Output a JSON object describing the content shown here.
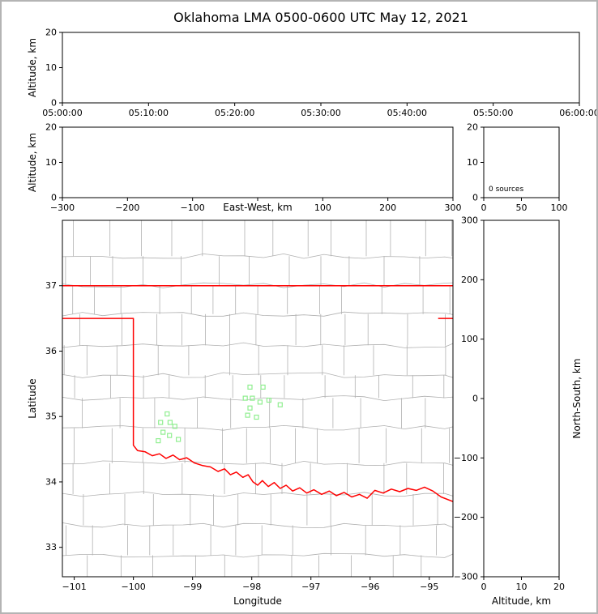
{
  "title": "Oklahoma LMA 0500-0600 UTC May 12, 2021",
  "colors": {
    "background": "#ffffff",
    "frame_border": "#b4b4b4",
    "axis": "#000000",
    "text": "#000000",
    "county_line": "#b0b0b0",
    "state_border": "#ff0000",
    "station_marker": "#90ee90"
  },
  "chart_data": [
    {
      "id": "time_height_panel",
      "type": "scatter",
      "xlabel": "",
      "ylabel": "Altitude, km",
      "ylim": [
        0,
        20
      ],
      "yticks": [
        0,
        10,
        20
      ],
      "xtick_labels": [
        "05:00:00",
        "05:10:00",
        "05:20:00",
        "05:30:00",
        "05:40:00",
        "05:50:00",
        "06:00:00"
      ],
      "points": []
    },
    {
      "id": "ew_height_panel",
      "type": "scatter",
      "xlabel": "East-West, km",
      "ylabel": "Altitude, km",
      "xlim": [
        -300,
        300
      ],
      "xticks": [
        -300,
        -200,
        -100,
        0,
        100,
        200,
        300
      ],
      "xtick_show_label": [
        true,
        true,
        true,
        false,
        true,
        true,
        true
      ],
      "ylim": [
        0,
        20
      ],
      "yticks": [
        0,
        10,
        20
      ],
      "points": []
    },
    {
      "id": "source_histogram_panel",
      "type": "line",
      "xlim": [
        0,
        100
      ],
      "xticks": [
        0,
        50,
        100
      ],
      "ylim": [
        0,
        20
      ],
      "yticks": [
        0,
        10,
        20
      ],
      "annotation": "0 sources",
      "points": []
    },
    {
      "id": "plan_view_panel",
      "type": "scatter",
      "xlabel": "Longitude",
      "ylabel": "Latitude",
      "xlim": [
        -101.2,
        -94.6
      ],
      "xticks": [
        -101,
        -100,
        -99,
        -98,
        -97,
        -96,
        -95
      ],
      "ylim": [
        32.55,
        38.0
      ],
      "yticks": [
        33,
        34,
        35,
        36,
        37
      ],
      "stations": [
        [
          -98.03,
          35.45
        ],
        [
          -97.81,
          35.45
        ],
        [
          -98.11,
          35.28
        ],
        [
          -97.99,
          35.28
        ],
        [
          -97.71,
          35.25
        ],
        [
          -97.86,
          35.22
        ],
        [
          -98.03,
          35.13
        ],
        [
          -98.07,
          35.02
        ],
        [
          -97.92,
          34.99
        ],
        [
          -97.52,
          35.18
        ],
        [
          -99.43,
          35.04
        ],
        [
          -99.54,
          34.91
        ],
        [
          -99.38,
          34.91
        ],
        [
          -99.3,
          34.85
        ],
        [
          -99.5,
          34.76
        ],
        [
          -99.39,
          34.71
        ],
        [
          -99.58,
          34.63
        ],
        [
          -99.24,
          34.65
        ]
      ],
      "state_boundary": [
        [
          [
            -101.2,
            37.0
          ],
          [
            -94.6,
            37.0
          ]
        ],
        [
          [
            -94.85,
            36.5
          ],
          [
            -94.6,
            36.5
          ]
        ],
        [
          [
            -101.2,
            36.5
          ],
          [
            -100.0,
            36.5
          ],
          [
            -100.0,
            34.56
          ],
          [
            -99.93,
            34.48
          ],
          [
            -99.8,
            34.46
          ],
          [
            -99.68,
            34.4
          ],
          [
            -99.56,
            34.43
          ],
          [
            -99.45,
            34.36
          ],
          [
            -99.33,
            34.41
          ],
          [
            -99.22,
            34.34
          ],
          [
            -99.1,
            34.37
          ],
          [
            -98.97,
            34.29
          ],
          [
            -98.83,
            34.25
          ],
          [
            -98.7,
            34.23
          ],
          [
            -98.57,
            34.16
          ],
          [
            -98.46,
            34.2
          ],
          [
            -98.36,
            34.11
          ],
          [
            -98.26,
            34.15
          ],
          [
            -98.15,
            34.07
          ],
          [
            -98.06,
            34.11
          ],
          [
            -97.98,
            34.0
          ],
          [
            -97.9,
            33.95
          ],
          [
            -97.82,
            34.02
          ],
          [
            -97.72,
            33.93
          ],
          [
            -97.62,
            33.99
          ],
          [
            -97.52,
            33.9
          ],
          [
            -97.42,
            33.95
          ],
          [
            -97.31,
            33.86
          ],
          [
            -97.19,
            33.91
          ],
          [
            -97.07,
            33.83
          ],
          [
            -96.95,
            33.88
          ],
          [
            -96.82,
            33.81
          ],
          [
            -96.69,
            33.86
          ],
          [
            -96.57,
            33.79
          ],
          [
            -96.44,
            33.84
          ],
          [
            -96.31,
            33.77
          ],
          [
            -96.18,
            33.81
          ],
          [
            -96.05,
            33.75
          ],
          [
            -95.92,
            33.87
          ],
          [
            -95.78,
            33.83
          ],
          [
            -95.64,
            33.89
          ],
          [
            -95.5,
            33.85
          ],
          [
            -95.36,
            33.9
          ],
          [
            -95.22,
            33.87
          ],
          [
            -95.08,
            33.92
          ],
          [
            -94.94,
            33.86
          ],
          [
            -94.8,
            33.77
          ],
          [
            -94.6,
            33.7
          ]
        ]
      ],
      "county_grid": {
        "seed": 11,
        "cell_w_deg": 0.52,
        "cell_h_deg": 0.44,
        "wiggle_deg": 0.04
      }
    },
    {
      "id": "ns_height_panel",
      "type": "scatter",
      "xlabel": "Altitude, km",
      "ylabel": "North-South, km",
      "ylabel_side": "right",
      "xlim": [
        0,
        20
      ],
      "xticks": [
        0,
        10,
        20
      ],
      "ylim": [
        -300,
        300
      ],
      "yticks": [
        300,
        200,
        100,
        0,
        -100,
        -200,
        -300
      ],
      "points": []
    }
  ]
}
